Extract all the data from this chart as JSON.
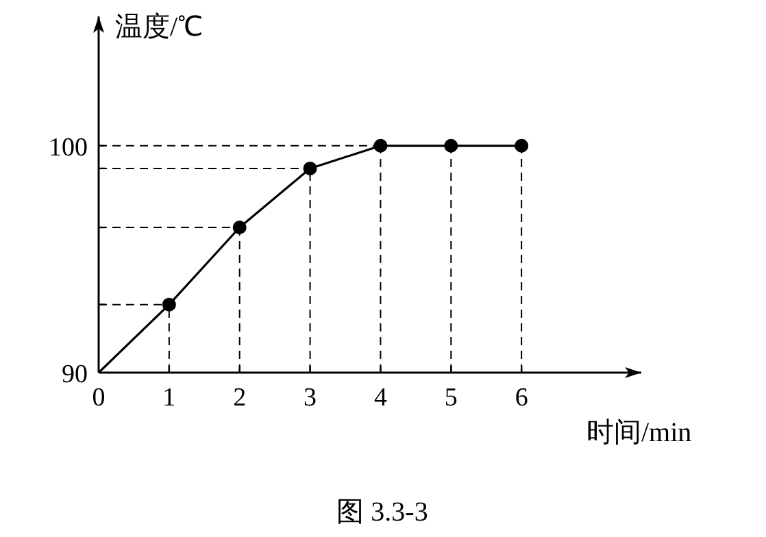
{
  "chart_data": {
    "type": "line",
    "xlabel": "时间/min",
    "ylabel": "温度/℃",
    "series": [
      {
        "type": "line",
        "color": "#000000",
        "x": [
          0,
          1,
          2,
          3,
          4,
          5,
          6
        ],
        "values": [
          90,
          93,
          96.4,
          99,
          100,
          100,
          100
        ],
        "marker": "none"
      },
      {
        "type": "scatter",
        "color": "#000000",
        "x": [
          1,
          2,
          3,
          4,
          5,
          6
        ],
        "values": [
          93,
          96.4,
          99,
          100,
          100,
          100
        ],
        "marker": "circle"
      }
    ],
    "xlim": [
      0,
      7.7
    ],
    "ylim": [
      90,
      105.7
    ],
    "xticks": [
      0,
      1,
      2,
      3,
      4,
      5,
      6
    ],
    "yticks": [
      90,
      {
        "value": 93,
        "label": null
      },
      {
        "value": 96.4,
        "label": null
      },
      {
        "value": 99,
        "label": null
      },
      100
    ],
    "ref_lines": [
      {
        "axis": "x",
        "value": 1,
        "line_style": "dashed"
      },
      {
        "axis": "x",
        "value": 2,
        "line_style": "dashed"
      },
      {
        "axis": "x",
        "value": 3,
        "line_style": "dashed"
      },
      {
        "axis": "x",
        "value": 4,
        "line_style": "dashed"
      },
      {
        "axis": "x",
        "value": 5,
        "line_style": "dashed"
      },
      {
        "axis": "x",
        "value": 6,
        "line_style": "dashed"
      },
      {
        "axis": "y",
        "value": 93,
        "line_style": "dashed"
      },
      {
        "axis": "y",
        "value": 96.4,
        "line_style": "dashed"
      },
      {
        "axis": "y",
        "value": 99,
        "line_style": "dashed"
      },
      {
        "axis": "y",
        "value": 100,
        "line_style": "dashed"
      }
    ],
    "annotations": [
      "图 3.3-3"
    ]
  }
}
